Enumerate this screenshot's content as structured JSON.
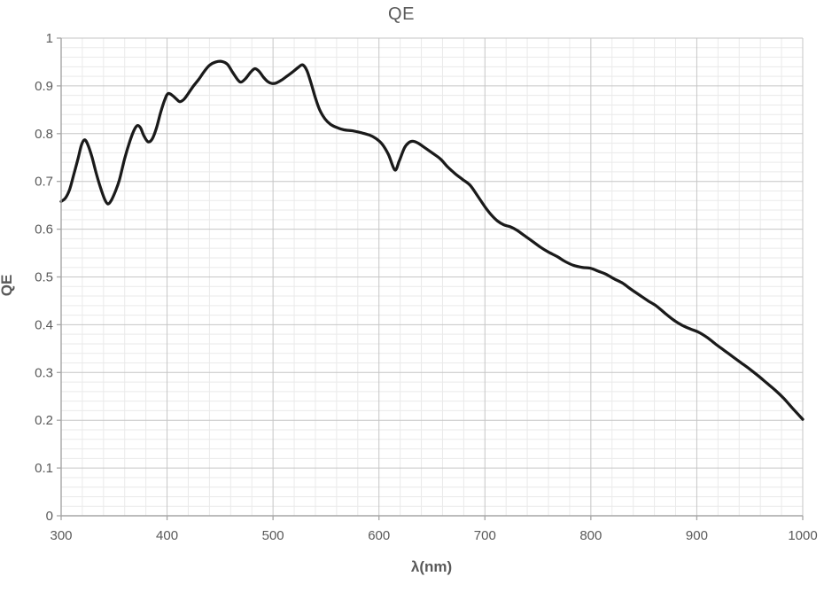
{
  "chart": {
    "title": "QE",
    "x_axis_title": "λ(nm)",
    "y_axis_title": "QE",
    "x_tick_labels": [
      "300",
      "400",
      "500",
      "600",
      "700",
      "800",
      "900",
      "1000"
    ],
    "y_tick_labels": [
      "1",
      "0.9",
      "0.8",
      "0.7",
      "0.6",
      "0.5",
      "0.4",
      "0.3",
      "0.2",
      "0.1",
      "0"
    ]
  },
  "style": {
    "curve_color": "#1a1a1a",
    "axis_color": "#a6a6a6",
    "major_grid_color": "#c6c6c6",
    "minor_grid_color": "#eaeaea",
    "text_color": "#595959",
    "background": "#ffffff"
  },
  "chart_data": {
    "type": "line",
    "title": "QE",
    "xlabel": "λ(nm)",
    "ylabel": "QE",
    "xlim": [
      300,
      1000
    ],
    "ylim": [
      0,
      1
    ],
    "x_major_step": 100,
    "x_minor_step": 20,
    "y_major_step": 0.1,
    "y_minor_step": 0.02,
    "grid": "major+minor",
    "legend_position": "none",
    "series": [
      {
        "name": "QE",
        "color": "#1a1a1a",
        "points": [
          [
            300,
            0.658
          ],
          [
            304,
            0.665
          ],
          [
            308,
            0.683
          ],
          [
            312,
            0.715
          ],
          [
            316,
            0.748
          ],
          [
            319,
            0.775
          ],
          [
            322,
            0.787
          ],
          [
            325,
            0.778
          ],
          [
            329,
            0.752
          ],
          [
            333,
            0.718
          ],
          [
            337,
            0.688
          ],
          [
            341,
            0.663
          ],
          [
            344,
            0.653
          ],
          [
            347,
            0.659
          ],
          [
            351,
            0.678
          ],
          [
            355,
            0.703
          ],
          [
            360,
            0.748
          ],
          [
            365,
            0.785
          ],
          [
            369,
            0.808
          ],
          [
            372,
            0.817
          ],
          [
            375,
            0.812
          ],
          [
            378,
            0.796
          ],
          [
            382,
            0.783
          ],
          [
            386,
            0.789
          ],
          [
            390,
            0.812
          ],
          [
            394,
            0.845
          ],
          [
            398,
            0.872
          ],
          [
            401,
            0.884
          ],
          [
            405,
            0.88
          ],
          [
            409,
            0.872
          ],
          [
            412,
            0.867
          ],
          [
            416,
            0.872
          ],
          [
            420,
            0.884
          ],
          [
            425,
            0.9
          ],
          [
            430,
            0.914
          ],
          [
            435,
            0.93
          ],
          [
            440,
            0.943
          ],
          [
            446,
            0.95
          ],
          [
            452,
            0.951
          ],
          [
            457,
            0.945
          ],
          [
            462,
            0.928
          ],
          [
            467,
            0.912
          ],
          [
            470,
            0.908
          ],
          [
            474,
            0.915
          ],
          [
            479,
            0.929
          ],
          [
            483,
            0.936
          ],
          [
            487,
            0.93
          ],
          [
            491,
            0.918
          ],
          [
            495,
            0.909
          ],
          [
            499,
            0.905
          ],
          [
            503,
            0.906
          ],
          [
            508,
            0.912
          ],
          [
            513,
            0.92
          ],
          [
            519,
            0.93
          ],
          [
            524,
            0.939
          ],
          [
            528,
            0.944
          ],
          [
            532,
            0.932
          ],
          [
            536,
            0.905
          ],
          [
            540,
            0.875
          ],
          [
            544,
            0.85
          ],
          [
            549,
            0.831
          ],
          [
            554,
            0.82
          ],
          [
            560,
            0.813
          ],
          [
            567,
            0.808
          ],
          [
            575,
            0.806
          ],
          [
            583,
            0.802
          ],
          [
            591,
            0.797
          ],
          [
            597,
            0.79
          ],
          [
            603,
            0.778
          ],
          [
            609,
            0.756
          ],
          [
            615,
            0.724
          ],
          [
            619,
            0.742
          ],
          [
            624,
            0.77
          ],
          [
            628,
            0.781
          ],
          [
            632,
            0.784
          ],
          [
            637,
            0.78
          ],
          [
            643,
            0.771
          ],
          [
            650,
            0.76
          ],
          [
            658,
            0.747
          ],
          [
            665,
            0.73
          ],
          [
            672,
            0.716
          ],
          [
            679,
            0.704
          ],
          [
            686,
            0.692
          ],
          [
            693,
            0.67
          ],
          [
            700,
            0.647
          ],
          [
            706,
            0.63
          ],
          [
            712,
            0.617
          ],
          [
            718,
            0.609
          ],
          [
            724,
            0.605
          ],
          [
            730,
            0.598
          ],
          [
            737,
            0.587
          ],
          [
            744,
            0.576
          ],
          [
            752,
            0.563
          ],
          [
            760,
            0.552
          ],
          [
            768,
            0.543
          ],
          [
            776,
            0.532
          ],
          [
            784,
            0.524
          ],
          [
            792,
            0.52
          ],
          [
            800,
            0.518
          ],
          [
            807,
            0.512
          ],
          [
            814,
            0.506
          ],
          [
            822,
            0.496
          ],
          [
            830,
            0.487
          ],
          [
            838,
            0.474
          ],
          [
            846,
            0.462
          ],
          [
            854,
            0.45
          ],
          [
            862,
            0.439
          ],
          [
            870,
            0.424
          ],
          [
            878,
            0.41
          ],
          [
            886,
            0.399
          ],
          [
            894,
            0.391
          ],
          [
            902,
            0.384
          ],
          [
            910,
            0.373
          ],
          [
            918,
            0.359
          ],
          [
            926,
            0.346
          ],
          [
            934,
            0.333
          ],
          [
            942,
            0.32
          ],
          [
            950,
            0.307
          ],
          [
            958,
            0.293
          ],
          [
            966,
            0.278
          ],
          [
            974,
            0.263
          ],
          [
            982,
            0.246
          ],
          [
            990,
            0.226
          ],
          [
            1000,
            0.202
          ]
        ]
      }
    ]
  }
}
